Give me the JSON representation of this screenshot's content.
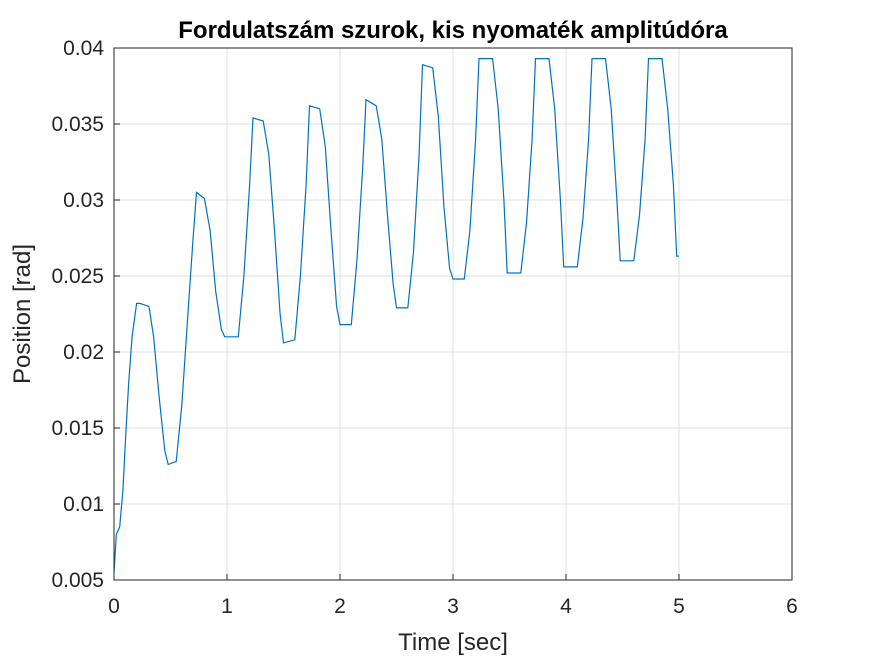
{
  "chart_data": {
    "type": "line",
    "title": "Fordulatszám szurok, kis nyomaték amplitúdóra",
    "xlabel": "Time [sec]",
    "ylabel": "Position [rad]",
    "xlim": [
      0,
      6
    ],
    "ylim": [
      0.005,
      0.04
    ],
    "xticks": [
      0,
      1,
      2,
      3,
      4,
      5,
      6
    ],
    "xtick_labels": [
      "0",
      "1",
      "2",
      "3",
      "4",
      "5",
      "6"
    ],
    "yticks": [
      0.005,
      0.01,
      0.015,
      0.02,
      0.025,
      0.03,
      0.035,
      0.04
    ],
    "ytick_labels": [
      "0.005",
      "0.01",
      "0.015",
      "0.02",
      "0.025",
      "0.03",
      "0.035",
      "0.04"
    ],
    "grid": true,
    "line_color": "#0072bd",
    "series": [
      {
        "x": [
          0,
          0.02,
          0.05,
          0.08,
          0.1,
          0.13,
          0.16,
          0.2,
          0.23,
          0.31,
          0.35,
          0.4,
          0.45,
          0.48,
          0.55,
          0.6,
          0.65,
          0.7,
          0.73,
          0.8,
          0.85,
          0.9,
          0.95,
          0.98,
          1.1,
          1.15,
          1.2,
          1.23,
          1.32,
          1.37,
          1.42,
          1.47,
          1.5,
          1.6,
          1.65,
          1.7,
          1.73,
          1.82,
          1.87,
          1.92,
          1.97,
          2.0,
          2.1,
          2.15,
          2.2,
          2.23,
          2.32,
          2.37,
          2.42,
          2.47,
          2.5,
          2.6,
          2.65,
          2.7,
          2.73,
          2.82,
          2.87,
          2.92,
          2.97,
          3.0,
          3.1,
          3.15,
          3.2,
          3.23,
          3.35,
          3.4,
          3.45,
          3.48,
          3.6,
          3.65,
          3.7,
          3.73,
          3.85,
          3.9,
          3.95,
          3.98,
          4.1,
          4.15,
          4.2,
          4.23,
          4.35,
          4.4,
          4.45,
          4.48,
          4.6,
          4.65,
          4.7,
          4.73,
          4.85,
          4.9,
          4.95,
          4.98,
          5.0
        ],
        "y": [
          0.0055,
          0.008,
          0.0085,
          0.011,
          0.014,
          0.018,
          0.021,
          0.0232,
          0.0232,
          0.023,
          0.021,
          0.017,
          0.0135,
          0.0126,
          0.0128,
          0.0165,
          0.022,
          0.0275,
          0.0305,
          0.0301,
          0.028,
          0.024,
          0.0215,
          0.021,
          0.021,
          0.025,
          0.031,
          0.0354,
          0.0352,
          0.033,
          0.028,
          0.0225,
          0.0206,
          0.0208,
          0.025,
          0.031,
          0.0362,
          0.036,
          0.0335,
          0.028,
          0.023,
          0.0218,
          0.0218,
          0.026,
          0.032,
          0.0366,
          0.0362,
          0.034,
          0.029,
          0.0245,
          0.0229,
          0.0229,
          0.0265,
          0.033,
          0.0389,
          0.0387,
          0.0355,
          0.0295,
          0.0255,
          0.0248,
          0.0248,
          0.028,
          0.034,
          0.0393,
          0.0393,
          0.036,
          0.03,
          0.0252,
          0.0252,
          0.0285,
          0.034,
          0.0393,
          0.0393,
          0.036,
          0.03,
          0.0256,
          0.0256,
          0.0288,
          0.034,
          0.0393,
          0.0393,
          0.036,
          0.03,
          0.026,
          0.026,
          0.029,
          0.034,
          0.0393,
          0.0393,
          0.036,
          0.031,
          0.0263,
          0.0263
        ]
      }
    ]
  }
}
